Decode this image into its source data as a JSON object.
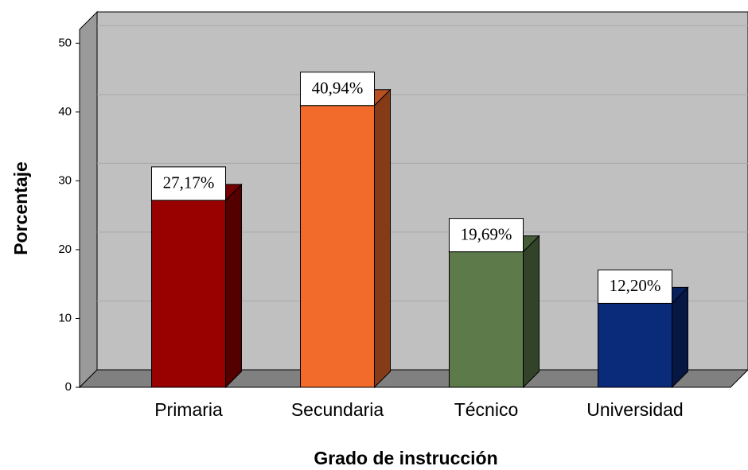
{
  "chart_data": {
    "type": "bar",
    "categories": [
      "Primaria",
      "Secundaria",
      "Técnico",
      "Universidad"
    ],
    "values": [
      27.17,
      40.94,
      19.69,
      12.2
    ],
    "value_labels": [
      "27,17%",
      "40,94%",
      "19,69%",
      "12,20%"
    ],
    "colors": [
      "#990000",
      "#f26b2b",
      "#5c7a4a",
      "#0a2a7a"
    ],
    "ylabel": "Porcentaje",
    "xlabel": "Grado de instrucción",
    "ylim": [
      0,
      52
    ],
    "yticks": [
      0,
      10,
      20,
      30,
      40,
      50
    ],
    "grid": true
  }
}
